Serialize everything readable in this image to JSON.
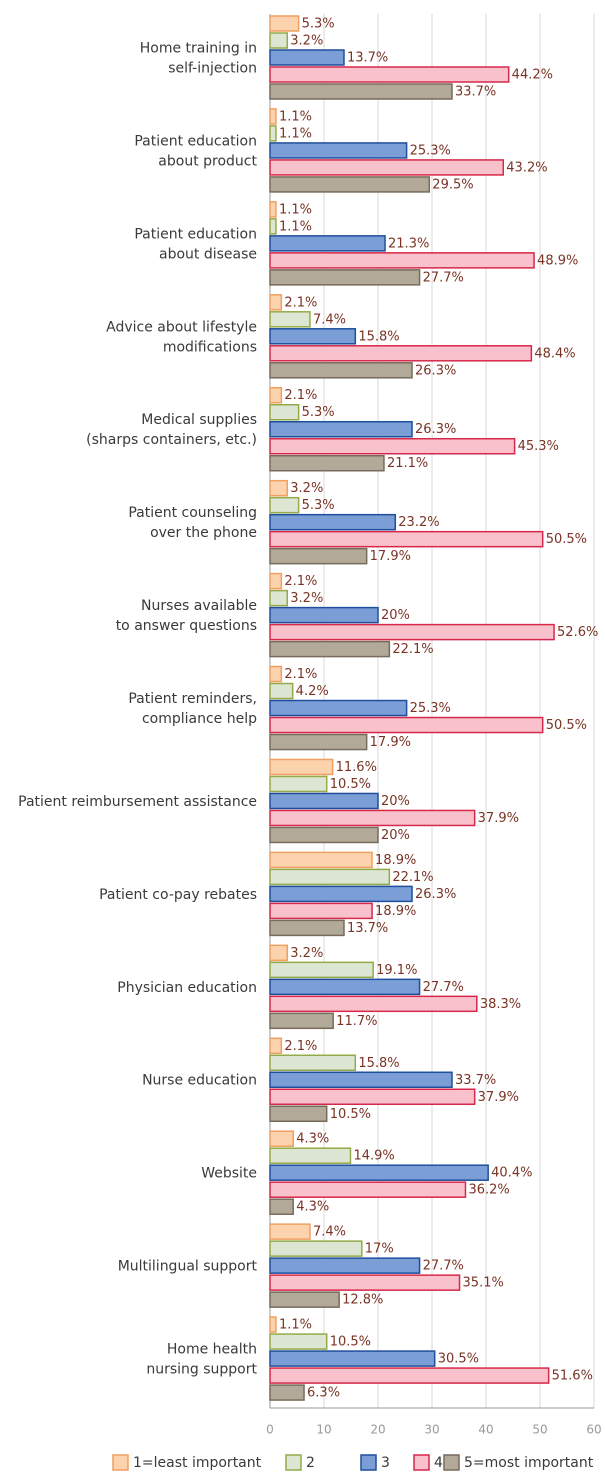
{
  "chart_data": {
    "type": "bar",
    "orientation": "horizontal",
    "categories": [
      "Home training in\nself-injection",
      "Patient education\nabout product",
      "Patient education\nabout disease",
      "Advice about lifestyle\nmodifications",
      "Medical supplies\n(sharps containers, etc.)",
      "Patient counseling\nover the phone",
      "Nurses available\nto answer questions",
      "Patient reminders,\ncompliance help",
      "Patient reimbursement assistance",
      "Patient co-pay rebates",
      "Physician education",
      "Nurse education",
      "Website",
      "Multilingual support",
      "Home health\nnursing support"
    ],
    "series": [
      {
        "name": "1=least important",
        "color": "#fcd3ad",
        "stroke": "#f0a060",
        "values": [
          5.3,
          1.1,
          1.1,
          2.1,
          2.1,
          3.2,
          2.1,
          2.1,
          11.6,
          18.9,
          3.2,
          2.1,
          4.3,
          7.4,
          1.1
        ],
        "value_labels": [
          "5.3%",
          "1.1%",
          "1.1%",
          "2.1%",
          "2.1%",
          "3.2%",
          "2.1%",
          "2.1%",
          "11.6%",
          "18.9%",
          "3.2%",
          "2.1%",
          "4.3%",
          "7.4%",
          "1.1%"
        ]
      },
      {
        "name": "2",
        "color": "#dde5d3",
        "stroke": "#94aa48",
        "values": [
          3.2,
          1.1,
          1.1,
          7.4,
          5.3,
          5.3,
          3.2,
          4.2,
          10.5,
          22.1,
          19.1,
          15.8,
          14.9,
          17,
          10.5
        ],
        "value_labels": [
          "3.2%",
          "1.1%",
          "1.1%",
          "7.4%",
          "5.3%",
          "5.3%",
          "3.2%",
          "4.2%",
          "10.5%",
          "22.1%",
          "19.1%",
          "15.8%",
          "14.9%",
          "17%",
          "10.5%"
        ]
      },
      {
        "name": "3",
        "color": "#7c9ed6",
        "stroke": "#1f4f9c",
        "values": [
          13.7,
          25.3,
          21.3,
          15.8,
          26.3,
          23.2,
          20,
          25.3,
          20,
          26.3,
          27.7,
          33.7,
          40.4,
          27.7,
          30.5
        ],
        "value_labels": [
          "13.7%",
          "25.3%",
          "21.3%",
          "15.8%",
          "26.3%",
          "23.2%",
          "20%",
          "25.3%",
          "20%",
          "26.3%",
          "27.7%",
          "33.7%",
          "40.4%",
          "27.7%",
          "30.5%"
        ]
      },
      {
        "name": "4",
        "color": "#f9c1cc",
        "stroke": "#d6284a",
        "values": [
          44.2,
          43.2,
          48.9,
          48.4,
          45.3,
          50.5,
          52.6,
          50.5,
          37.9,
          18.9,
          38.3,
          37.9,
          36.2,
          35.1,
          51.6
        ],
        "value_labels": [
          "44.2%",
          "43.2%",
          "48.9%",
          "48.4%",
          "45.3%",
          "50.5%",
          "52.6%",
          "50.5%",
          "37.9%",
          "18.9%",
          "38.3%",
          "37.9%",
          "36.2%",
          "35.1%",
          "51.6%"
        ]
      },
      {
        "name": "5=most important",
        "color": "#b2a999",
        "stroke": "#776b5c",
        "values": [
          33.7,
          29.5,
          27.7,
          26.3,
          21.1,
          17.9,
          22.1,
          17.9,
          20,
          13.7,
          11.7,
          10.5,
          4.3,
          12.8,
          6.3
        ],
        "value_labels": [
          "33.7%",
          "29.5%",
          "27.7%",
          "26.3%",
          "21.1%",
          "17.9%",
          "22.1%",
          "17.9%",
          "20%",
          "13.7%",
          "11.7%",
          "10.5%",
          "4.3%",
          "12.8%",
          "6.3%"
        ]
      }
    ],
    "xlim": [
      0,
      60
    ],
    "xticks": [
      0,
      10,
      20,
      30,
      40,
      50,
      60
    ],
    "grid": true,
    "legend": "bottom"
  }
}
